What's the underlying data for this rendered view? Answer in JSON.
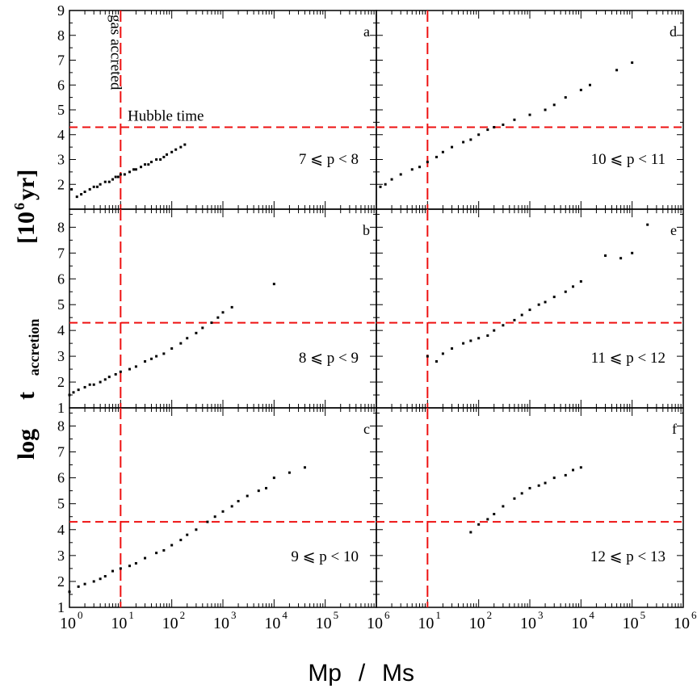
{
  "chart_data": {
    "type": "scatter",
    "x_label_main": "Mp",
    "x_label_sep": "/",
    "x_label_tail": "Ms",
    "y_label_main": "log",
    "y_label_t": "t",
    "y_label_sub": "accretion",
    "y_label_unit": "[10",
    "y_label_unit_exp": "6",
    "y_label_unit_tail": "yr]",
    "x_scale": "log",
    "xlim": [
      1,
      1000000
    ],
    "x_tick_base": "10",
    "x_tick_exponents": [
      "0",
      "1",
      "2",
      "3",
      "4",
      "5",
      "6"
    ],
    "hubble_time": 4.3,
    "gas_accreted_mass": 10,
    "hubble_label": "Hubble time",
    "gas_label": "gas accreted",
    "line_color": "#ee1111",
    "point_color": "#000000",
    "panels": [
      {
        "letter": "a",
        "range_label": "7 ⩽ p < 8",
        "ylim": [
          1,
          9
        ],
        "yticks": [
          "2",
          "3",
          "4",
          "5",
          "6",
          "7",
          "8",
          "9"
        ],
        "points": [
          [
            1.1,
            1.8
          ],
          [
            1.4,
            1.5
          ],
          [
            1.7,
            1.6
          ],
          [
            2,
            1.7
          ],
          [
            2.5,
            1.8
          ],
          [
            3,
            1.9
          ],
          [
            3.5,
            1.9
          ],
          [
            4,
            2.0
          ],
          [
            5,
            2.1
          ],
          [
            6,
            2.1
          ],
          [
            7,
            2.2
          ],
          [
            8,
            2.3
          ],
          [
            9,
            2.3
          ],
          [
            10,
            2.4
          ],
          [
            12,
            2.4
          ],
          [
            15,
            2.5
          ],
          [
            18,
            2.6
          ],
          [
            20,
            2.6
          ],
          [
            25,
            2.7
          ],
          [
            30,
            2.8
          ],
          [
            35,
            2.8
          ],
          [
            40,
            2.9
          ],
          [
            50,
            3.0
          ],
          [
            60,
            3.0
          ],
          [
            70,
            3.1
          ],
          [
            80,
            3.2
          ],
          [
            100,
            3.3
          ],
          [
            120,
            3.4
          ],
          [
            150,
            3.5
          ],
          [
            180,
            3.6
          ]
        ]
      },
      {
        "letter": "b",
        "range_label": "8 ⩽ p < 9",
        "ylim": [
          1,
          8.7
        ],
        "yticks": [
          "1",
          "2",
          "3",
          "4",
          "5",
          "6",
          "7",
          "8"
        ],
        "points": [
          [
            1,
            1.5
          ],
          [
            1.2,
            1.6
          ],
          [
            1.5,
            1.7
          ],
          [
            2,
            1.8
          ],
          [
            2.5,
            1.9
          ],
          [
            3,
            1.9
          ],
          [
            4,
            2.0
          ],
          [
            5,
            2.1
          ],
          [
            6,
            2.2
          ],
          [
            8,
            2.3
          ],
          [
            10,
            2.4
          ],
          [
            15,
            2.5
          ],
          [
            20,
            2.6
          ],
          [
            30,
            2.8
          ],
          [
            40,
            2.9
          ],
          [
            50,
            3.0
          ],
          [
            70,
            3.1
          ],
          [
            100,
            3.3
          ],
          [
            150,
            3.5
          ],
          [
            200,
            3.7
          ],
          [
            300,
            3.9
          ],
          [
            400,
            4.1
          ],
          [
            600,
            4.3
          ],
          [
            800,
            4.5
          ],
          [
            1000,
            4.7
          ],
          [
            1500,
            4.9
          ],
          [
            10000,
            5.8
          ]
        ]
      },
      {
        "letter": "c",
        "range_label": "9 ⩽ p < 10",
        "ylim": [
          1,
          8.7
        ],
        "yticks": [
          "1",
          "2",
          "3",
          "4",
          "5",
          "6",
          "7",
          "8"
        ],
        "points": [
          [
            1,
            1.6
          ],
          [
            1.5,
            1.8
          ],
          [
            2,
            1.9
          ],
          [
            3,
            2.0
          ],
          [
            4,
            2.1
          ],
          [
            5,
            2.2
          ],
          [
            7,
            2.4
          ],
          [
            10,
            2.5
          ],
          [
            15,
            2.6
          ],
          [
            20,
            2.7
          ],
          [
            30,
            2.9
          ],
          [
            50,
            3.1
          ],
          [
            70,
            3.2
          ],
          [
            100,
            3.4
          ],
          [
            150,
            3.6
          ],
          [
            200,
            3.8
          ],
          [
            300,
            4.0
          ],
          [
            500,
            4.3
          ],
          [
            700,
            4.5
          ],
          [
            1000,
            4.7
          ],
          [
            1500,
            4.9
          ],
          [
            2000,
            5.1
          ],
          [
            3000,
            5.3
          ],
          [
            5000,
            5.5
          ],
          [
            7000,
            5.6
          ],
          [
            10000,
            6.0
          ],
          [
            20000,
            6.2
          ],
          [
            40000,
            6.4
          ]
        ]
      },
      {
        "letter": "d",
        "range_label": "10 ⩽ p < 11",
        "ylim": [
          1,
          9
        ],
        "yticks": [
          "2",
          "3",
          "4",
          "5",
          "6",
          "7",
          "8",
          "9"
        ],
        "points": [
          [
            1.2,
            1.9
          ],
          [
            1.5,
            2.0
          ],
          [
            2,
            2.2
          ],
          [
            3,
            2.4
          ],
          [
            5,
            2.6
          ],
          [
            7,
            2.7
          ],
          [
            10,
            2.9
          ],
          [
            15,
            3.1
          ],
          [
            20,
            3.3
          ],
          [
            30,
            3.5
          ],
          [
            50,
            3.7
          ],
          [
            70,
            3.8
          ],
          [
            100,
            4.0
          ],
          [
            150,
            4.2
          ],
          [
            200,
            4.3
          ],
          [
            300,
            4.4
          ],
          [
            500,
            4.6
          ],
          [
            1000,
            4.8
          ],
          [
            2000,
            5.0
          ],
          [
            3000,
            5.2
          ],
          [
            5000,
            5.5
          ],
          [
            10000,
            5.8
          ],
          [
            15000,
            6.0
          ],
          [
            50000,
            6.6
          ],
          [
            100000,
            6.9
          ]
        ]
      },
      {
        "letter": "e",
        "range_label": "11 ⩽ p < 12",
        "ylim": [
          1,
          8.7
        ],
        "yticks": [
          "1",
          "2",
          "3",
          "4",
          "5",
          "6",
          "7",
          "8"
        ],
        "points": [
          [
            10,
            3.0
          ],
          [
            15,
            2.8
          ],
          [
            20,
            3.1
          ],
          [
            30,
            3.3
          ],
          [
            50,
            3.5
          ],
          [
            70,
            3.6
          ],
          [
            100,
            3.7
          ],
          [
            150,
            3.8
          ],
          [
            200,
            4.0
          ],
          [
            300,
            4.2
          ],
          [
            500,
            4.4
          ],
          [
            700,
            4.6
          ],
          [
            1000,
            4.8
          ],
          [
            1500,
            5.0
          ],
          [
            2000,
            5.1
          ],
          [
            3000,
            5.3
          ],
          [
            5000,
            5.5
          ],
          [
            7000,
            5.7
          ],
          [
            10000,
            5.9
          ],
          [
            30000,
            6.9
          ],
          [
            60000,
            6.8
          ],
          [
            100000,
            7.0
          ],
          [
            200000,
            8.1
          ]
        ]
      },
      {
        "letter": "f",
        "range_label": "12 ⩽ p < 13",
        "ylim": [
          1,
          8.7
        ],
        "yticks": [
          "1",
          "2",
          "3",
          "4",
          "5",
          "6",
          "7",
          "8"
        ],
        "points": [
          [
            70,
            3.9
          ],
          [
            100,
            4.2
          ],
          [
            150,
            4.4
          ],
          [
            200,
            4.6
          ],
          [
            300,
            4.9
          ],
          [
            500,
            5.2
          ],
          [
            700,
            5.4
          ],
          [
            1000,
            5.6
          ],
          [
            1500,
            5.7
          ],
          [
            2000,
            5.8
          ],
          [
            3000,
            6.0
          ],
          [
            5000,
            6.1
          ],
          [
            7000,
            6.3
          ],
          [
            10000,
            6.4
          ]
        ]
      }
    ]
  }
}
